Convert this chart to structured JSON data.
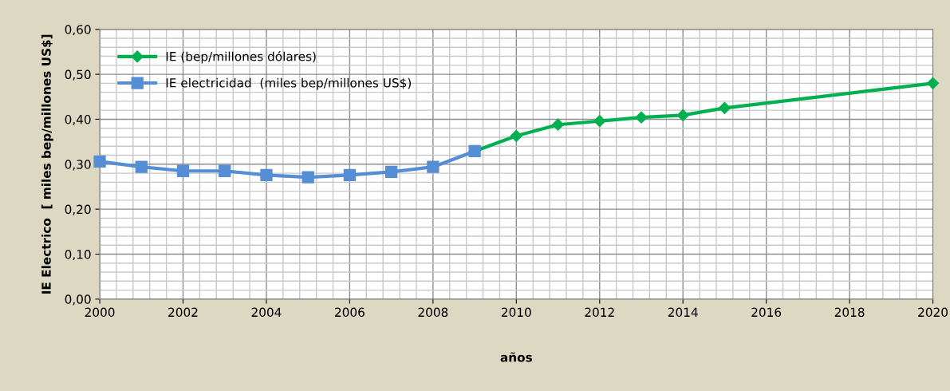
{
  "chart_data": {
    "type": "line",
    "xlabel": "años",
    "ylabel": "IE Electrico  [ miles bep/millones US$]",
    "xlim": [
      2000,
      2020
    ],
    "xticks": [
      2000,
      2002,
      2004,
      2006,
      2008,
      2010,
      2012,
      2014,
      2016,
      2018,
      2020
    ],
    "ylim": [
      0,
      0.6
    ],
    "yticks": [
      {
        "value": 0,
        "label": "0,00"
      },
      {
        "value": 0.1,
        "label": "0,10"
      },
      {
        "value": 0.2,
        "label": "0,20"
      },
      {
        "value": 0.3,
        "label": "0,30"
      },
      {
        "value": 0.4,
        "label": "0,40"
      },
      {
        "value": 0.5,
        "label": "0,50"
      },
      {
        "value": 0.6,
        "label": "0,60"
      }
    ],
    "grid": true,
    "legend": "top left",
    "line_style": "solid",
    "series": [
      {
        "name": "IE (bep/millones dólares)",
        "color": "#00b050",
        "marker": "diamond",
        "x": [
          2009,
          2010,
          2011,
          2012,
          2013,
          2014,
          2015,
          2020
        ],
        "values": [
          0.329,
          0.363,
          0.388,
          0.396,
          0.404,
          0.409,
          0.425,
          0.48
        ]
      },
      {
        "name": "IE electricidad  (miles bep/millones US$)",
        "color": "#558ed5",
        "marker": "square",
        "x": [
          2000,
          2001,
          2002,
          2003,
          2004,
          2005,
          2006,
          2007,
          2008,
          2009
        ],
        "values": [
          0.306,
          0.294,
          0.285,
          0.285,
          0.276,
          0.271,
          0.276,
          0.283,
          0.294,
          0.329
        ]
      }
    ]
  }
}
